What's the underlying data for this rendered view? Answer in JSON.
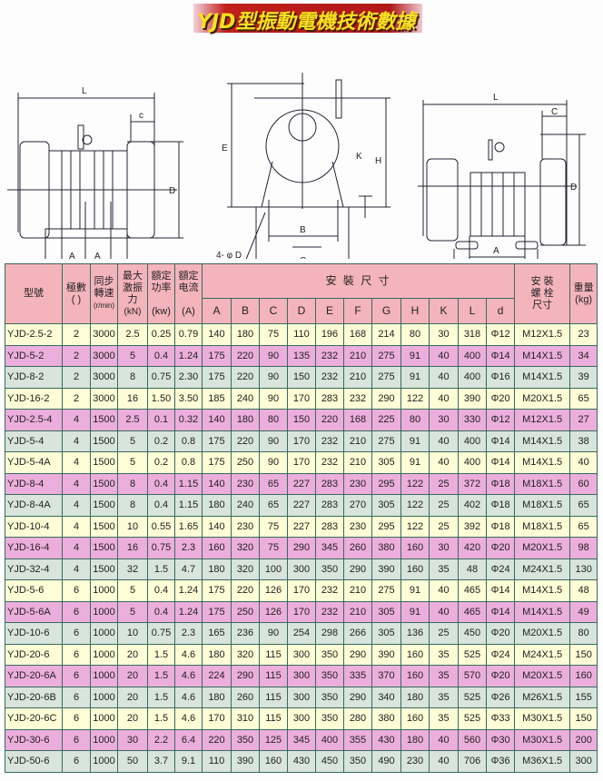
{
  "title": "YJD型振動電機技術數據",
  "diagram_labels": {
    "L": "L",
    "C_lower": "c",
    "C": "C",
    "D": "D",
    "A": "A",
    "F": "F",
    "E": "E",
    "B": "B",
    "G": "G",
    "H": "H",
    "K": "K",
    "hole": "4- φ D"
  },
  "table": {
    "headers": {
      "model": "型號",
      "poles": [
        "極數",
        "(   )"
      ],
      "speed": [
        "同步",
        "轉速",
        "(r/min)"
      ],
      "force": [
        "最大",
        "激振",
        "力",
        "(kN)"
      ],
      "power": [
        "額定",
        "功率",
        "(kw)"
      ],
      "current": [
        "額定",
        "电流",
        "(A)"
      ],
      "install_dims": "安 裝 尺 寸",
      "dims": [
        "A",
        "B",
        "C",
        "D",
        "E",
        "F",
        "G",
        "H",
        "K",
        "L",
        "d"
      ],
      "bolt": [
        "安 裝",
        "螺 栓",
        "尺寸"
      ],
      "weight": [
        "重量",
        "(kg)"
      ]
    },
    "colors": {
      "header": "#f4b4bc",
      "yellow": "#fdfdd6",
      "pink": "#ecaedc",
      "grey": "#d8e4dc"
    },
    "rows": [
      [
        "YJD-2.5-2",
        "2",
        "3000",
        "2.5",
        "0.25",
        "0.79",
        "140",
        "180",
        "75",
        "110",
        "196",
        "168",
        "214",
        "80",
        "30",
        "318",
        "Φ12",
        "M12X1.5",
        "23"
      ],
      [
        "YJD-5-2",
        "2",
        "3000",
        "5",
        "0.4",
        "1.24",
        "175",
        "220",
        "90",
        "135",
        "232",
        "210",
        "275",
        "91",
        "40",
        "400",
        "Φ14",
        "M14X1.5",
        "34"
      ],
      [
        "YJD-8-2",
        "2",
        "3000",
        "8",
        "0.75",
        "2.30",
        "175",
        "220",
        "90",
        "150",
        "232",
        "210",
        "275",
        "91",
        "40",
        "400",
        "Φ16",
        "M14X1.5",
        "39"
      ],
      [
        "YJD-16-2",
        "2",
        "3000",
        "16",
        "1.50",
        "3.50",
        "185",
        "240",
        "90",
        "170",
        "283",
        "232",
        "290",
        "122",
        "40",
        "390",
        "Φ20",
        "M20X1.5",
        "65"
      ],
      [
        "YJD-2.5-4",
        "4",
        "1500",
        "2.5",
        "0.1",
        "0.32",
        "140",
        "180",
        "80",
        "150",
        "220",
        "168",
        "225",
        "80",
        "30",
        "330",
        "Φ12",
        "M12X1.5",
        "27"
      ],
      [
        "YJD-5-4",
        "4",
        "1500",
        "5",
        "0.2",
        "0.8",
        "175",
        "220",
        "90",
        "170",
        "232",
        "210",
        "275",
        "91",
        "40",
        "400",
        "Φ14",
        "M14X1.5",
        "38"
      ],
      [
        "YJD-5-4A",
        "4",
        "1500",
        "5",
        "0.2",
        "0.8",
        "175",
        "250",
        "90",
        "170",
        "232",
        "210",
        "305",
        "91",
        "40",
        "400",
        "Φ14",
        "M14X1.5",
        "40"
      ],
      [
        "YJD-8-4",
        "4",
        "1500",
        "8",
        "0.4",
        "1.15",
        "140",
        "230",
        "65",
        "227",
        "283",
        "230",
        "295",
        "122",
        "25",
        "372",
        "Φ18",
        "M18X1.5",
        "60"
      ],
      [
        "YJD-8-4A",
        "4",
        "1500",
        "8",
        "0.4",
        "1.15",
        "180",
        "240",
        "65",
        "227",
        "283",
        "270",
        "305",
        "122",
        "25",
        "402",
        "Φ18",
        "M18X1.5",
        "65"
      ],
      [
        "YJD-10-4",
        "4",
        "1500",
        "10",
        "0.55",
        "1.65",
        "140",
        "230",
        "75",
        "227",
        "283",
        "230",
        "295",
        "122",
        "25",
        "392",
        "Φ18",
        "M18X1.5",
        "65"
      ],
      [
        "YJD-16-4",
        "4",
        "1500",
        "16",
        "0.75",
        "2.3",
        "160",
        "320",
        "75",
        "290",
        "345",
        "260",
        "380",
        "160",
        "30",
        "420",
        "Φ20",
        "M20X1.5",
        "98"
      ],
      [
        "YJD-32-4",
        "4",
        "1500",
        "32",
        "1.5",
        "4.7",
        "180",
        "320",
        "100",
        "300",
        "350",
        "290",
        "390",
        "160",
        "35",
        "48",
        "Φ24",
        "M24X1.5",
        "130"
      ],
      [
        "YJD-5-6",
        "6",
        "1000",
        "5",
        "0.4",
        "1.24",
        "175",
        "220",
        "126",
        "170",
        "232",
        "210",
        "275",
        "91",
        "40",
        "465",
        "Φ14",
        "M14X1.5",
        "48"
      ],
      [
        "YJD-5-6A",
        "6",
        "1000",
        "5",
        "0.4",
        "1.24",
        "175",
        "250",
        "126",
        "170",
        "232",
        "210",
        "305",
        "91",
        "40",
        "465",
        "Φ14",
        "M14X1.5",
        "49"
      ],
      [
        "YJD-10-6",
        "6",
        "1000",
        "10",
        "0.75",
        "2.3",
        "165",
        "236",
        "90",
        "254",
        "298",
        "266",
        "305",
        "136",
        "25",
        "450",
        "Φ20",
        "M20X1.5",
        "80"
      ],
      [
        "YJD-20-6",
        "6",
        "1000",
        "20",
        "1.5",
        "4.6",
        "180",
        "320",
        "115",
        "300",
        "350",
        "290",
        "390",
        "160",
        "35",
        "525",
        "Φ24",
        "M24X1.5",
        "150"
      ],
      [
        "YJD-20-6A",
        "6",
        "1000",
        "20",
        "1.5",
        "4.6",
        "224",
        "290",
        "115",
        "300",
        "350",
        "335",
        "370",
        "160",
        "35",
        "570",
        "Φ20",
        "M20X1.5",
        "160"
      ],
      [
        "YJD-20-6B",
        "6",
        "1000",
        "20",
        "1.5",
        "4.6",
        "180",
        "260",
        "115",
        "300",
        "350",
        "290",
        "340",
        "180",
        "35",
        "525",
        "Φ26",
        "M26X1.5",
        "155"
      ],
      [
        "YJD-20-6C",
        "6",
        "1000",
        "20",
        "1.5",
        "4.6",
        "170",
        "310",
        "115",
        "300",
        "350",
        "280",
        "380",
        "160",
        "35",
        "525",
        "Φ33",
        "M30X1.5",
        "150"
      ],
      [
        "YJD-30-6",
        "6",
        "1000",
        "30",
        "2.2",
        "6.4",
        "220",
        "350",
        "125",
        "345",
        "400",
        "355",
        "430",
        "180",
        "40",
        "560",
        "Φ30",
        "M30X1.5",
        "200"
      ],
      [
        "YJD-50-6",
        "6",
        "1000",
        "50",
        "3.7",
        "9.1",
        "110",
        "390",
        "160",
        "430",
        "450",
        "350",
        "490",
        "230",
        "40",
        "706",
        "Φ36",
        "M36X1.5",
        "300"
      ]
    ]
  }
}
